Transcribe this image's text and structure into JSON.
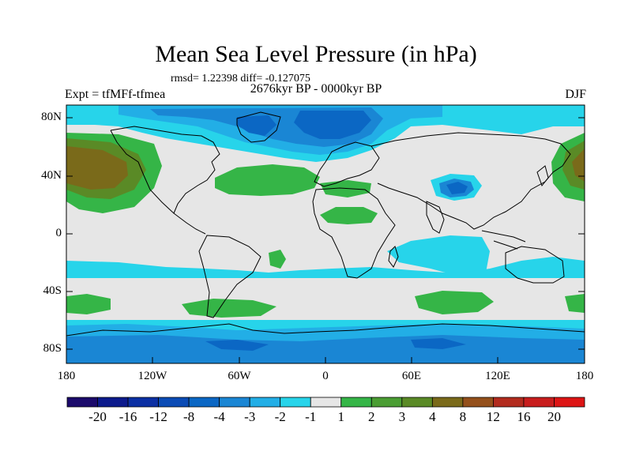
{
  "title": "Mean Sea Level Pressure (in hPa)",
  "stats": "rmsd= 1.22398 diff= -0.127075",
  "subtitle": "2676kyr BP - 0000kyr BP",
  "experiment": "Expt = tfMFf-tfmea",
  "season": "DJF",
  "lat_labels": [
    "80N",
    "40N",
    "0",
    "40S",
    "80S"
  ],
  "lon_labels": [
    "180",
    "120W",
    "60W",
    "0",
    "60E",
    "120E",
    "180"
  ],
  "colorbar": {
    "levels": [
      "-20",
      "-16",
      "-12",
      "-8",
      "-4",
      "-3",
      "-2",
      "-1",
      "1",
      "2",
      "3",
      "4",
      "8",
      "12",
      "16",
      "20"
    ],
    "colors": [
      "#1b0a6b",
      "#0c1a8c",
      "#0b2fa3",
      "#0a4bb5",
      "#0b67c4",
      "#1a86d4",
      "#22aee6",
      "#27d4ea",
      "#e6e6e6",
      "#35b547",
      "#4a9d33",
      "#5a8a26",
      "#7a6a1a",
      "#94501b",
      "#b22b1e",
      "#c81d1d",
      "#dd1515"
    ]
  },
  "colors": {
    "neutral": "#e6e6e6",
    "cyan": "#27d4ea",
    "light_blue": "#22aee6",
    "mid_blue": "#1a86d4",
    "blue": "#0b67c4",
    "deep_blue": "#0a4bb5",
    "green": "#35b547",
    "olive": "#5a8a26",
    "brown": "#7a6a1a"
  }
}
